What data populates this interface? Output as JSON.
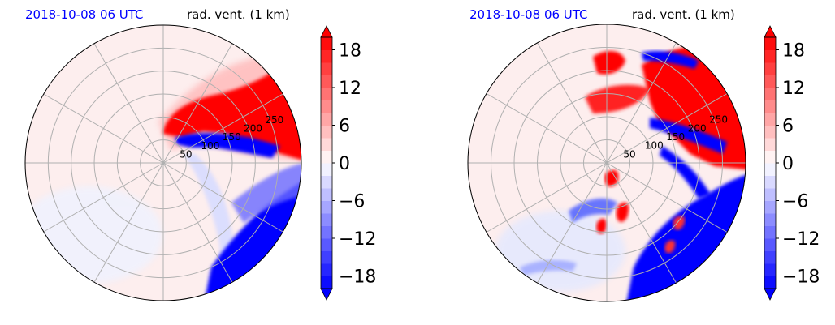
{
  "chart_data": [
    {
      "type": "heatmap",
      "projection": "polar",
      "title_left": "2018-10-08 06 UTC",
      "title_right": "rad. vent. (1 km)",
      "range_ring_labels": [
        "50",
        "100",
        "150",
        "200",
        "250"
      ],
      "range_rings": [
        50,
        100,
        150,
        200,
        250
      ],
      "max_range": 300,
      "colorbar": {
        "ticks": [
          "18",
          "12",
          "6",
          "0",
          "−6",
          "−12",
          "−18"
        ],
        "tick_values": [
          18,
          12,
          6,
          0,
          -6,
          -12,
          -18
        ],
        "range": [
          -20,
          20
        ],
        "extend": "both",
        "colormap": "bwr",
        "low_color": "#0000ff",
        "mid_color": "#ffffff",
        "high_color": "#ff0000"
      }
    },
    {
      "type": "heatmap",
      "projection": "polar",
      "title_left": "2018-10-08 06 UTC",
      "title_right": "rad. vent. (1 km)",
      "range_ring_labels": [
        "50",
        "100",
        "150",
        "200",
        "250"
      ],
      "range_rings": [
        50,
        100,
        150,
        200,
        250
      ],
      "max_range": 300,
      "colorbar": {
        "ticks": [
          "18",
          "12",
          "6",
          "0",
          "−6",
          "−12",
          "−18"
        ],
        "tick_values": [
          18,
          12,
          6,
          0,
          -6,
          -12,
          -18
        ],
        "range": [
          -20,
          20
        ],
        "extend": "both",
        "colormap": "bwr",
        "low_color": "#0000ff",
        "mid_color": "#ffffff",
        "high_color": "#ff0000"
      }
    }
  ]
}
